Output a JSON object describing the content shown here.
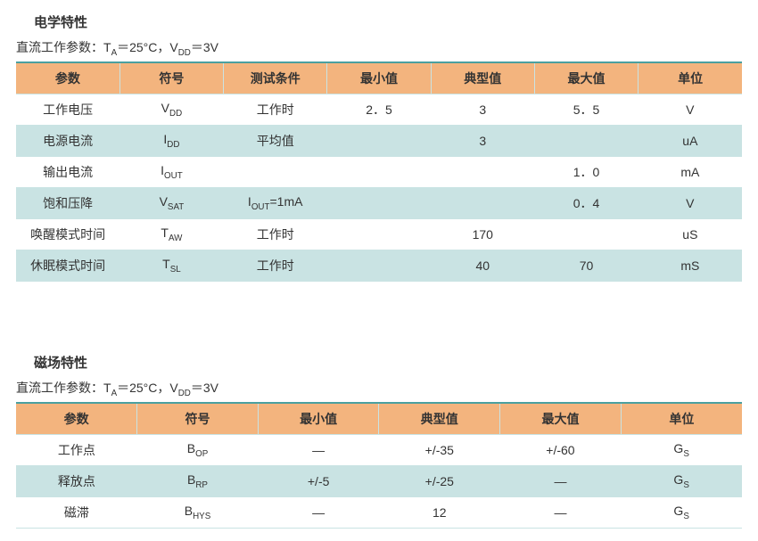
{
  "section1": {
    "title": "电学特性",
    "subtitle_prefix": "直流工作参数：T",
    "subtitle_sub1": "A",
    "subtitle_mid": "＝25°C，V",
    "subtitle_sub2": "DD",
    "subtitle_suffix": "＝3V",
    "columns": [
      "参数",
      "符号",
      "测试条件",
      "最小值",
      "典型值",
      "最大值",
      "单位"
    ],
    "rows": [
      {
        "param": "工作电压",
        "sym_main": "V",
        "sym_sub": "DD",
        "cond": "工作时",
        "min": "2．5",
        "typ": "3",
        "max": "5．5",
        "unit": "V",
        "alt": false
      },
      {
        "param": "电源电流",
        "sym_main": "I",
        "sym_sub": "DD",
        "cond": "平均值",
        "min": "",
        "typ": "3",
        "max": "",
        "unit": "uA",
        "alt": true
      },
      {
        "param": "输出电流",
        "sym_main": "I",
        "sym_sub": "OUT",
        "cond": "",
        "min": "",
        "typ": "",
        "max": "1．0",
        "unit": "mA",
        "alt": false
      },
      {
        "param": "饱和压降",
        "sym_main": "V",
        "sym_sub": "SAT",
        "cond_main": "I",
        "cond_sub": "OUT",
        "cond_suffix": "=1mA",
        "min": "",
        "typ": "",
        "max": "0．4",
        "unit": "V",
        "alt": true,
        "cond_has_sub": true
      },
      {
        "param": "唤醒模式时间",
        "sym_main": "T",
        "sym_sub": "AW",
        "cond": "工作时",
        "min": "",
        "typ": "170",
        "max": "",
        "unit": "uS",
        "alt": false
      },
      {
        "param": "休眠模式时间",
        "sym_main": "T",
        "sym_sub": "SL",
        "cond": "工作时",
        "min": "",
        "typ": "40",
        "max": "70",
        "unit": "mS",
        "alt": true
      }
    ]
  },
  "section2": {
    "title": "磁场特性",
    "subtitle_prefix": "直流工作参数：T",
    "subtitle_sub1": "A",
    "subtitle_mid": "＝25°C，V",
    "subtitle_sub2": "DD",
    "subtitle_suffix": "＝3V",
    "columns": [
      "参数",
      "符号",
      "最小值",
      "典型值",
      "最大值",
      "单位"
    ],
    "rows": [
      {
        "param": "工作点",
        "sym_main": "B",
        "sym_sub": "OP",
        "min": "—",
        "typ": "+/-35",
        "max": "+/-60",
        "unit_main": "G",
        "unit_sub": "S",
        "alt": false
      },
      {
        "param": "释放点",
        "sym_main": "B",
        "sym_sub": "RP",
        "min": "+/-5",
        "typ": "+/-25",
        "max": "—",
        "unit_main": "G",
        "unit_sub": "S",
        "alt": true
      },
      {
        "param": "磁滞",
        "sym_main": "B",
        "sym_sub": "HYS",
        "min": "—",
        "typ": "12",
        "max": "—",
        "unit_main": "G",
        "unit_sub": "S",
        "alt": false
      }
    ]
  },
  "colors": {
    "header_bg": "#f3b47e",
    "row_alt_bg": "#c9e3e3",
    "border": "#c9e3e3",
    "top_border": "#4aa0a0"
  }
}
